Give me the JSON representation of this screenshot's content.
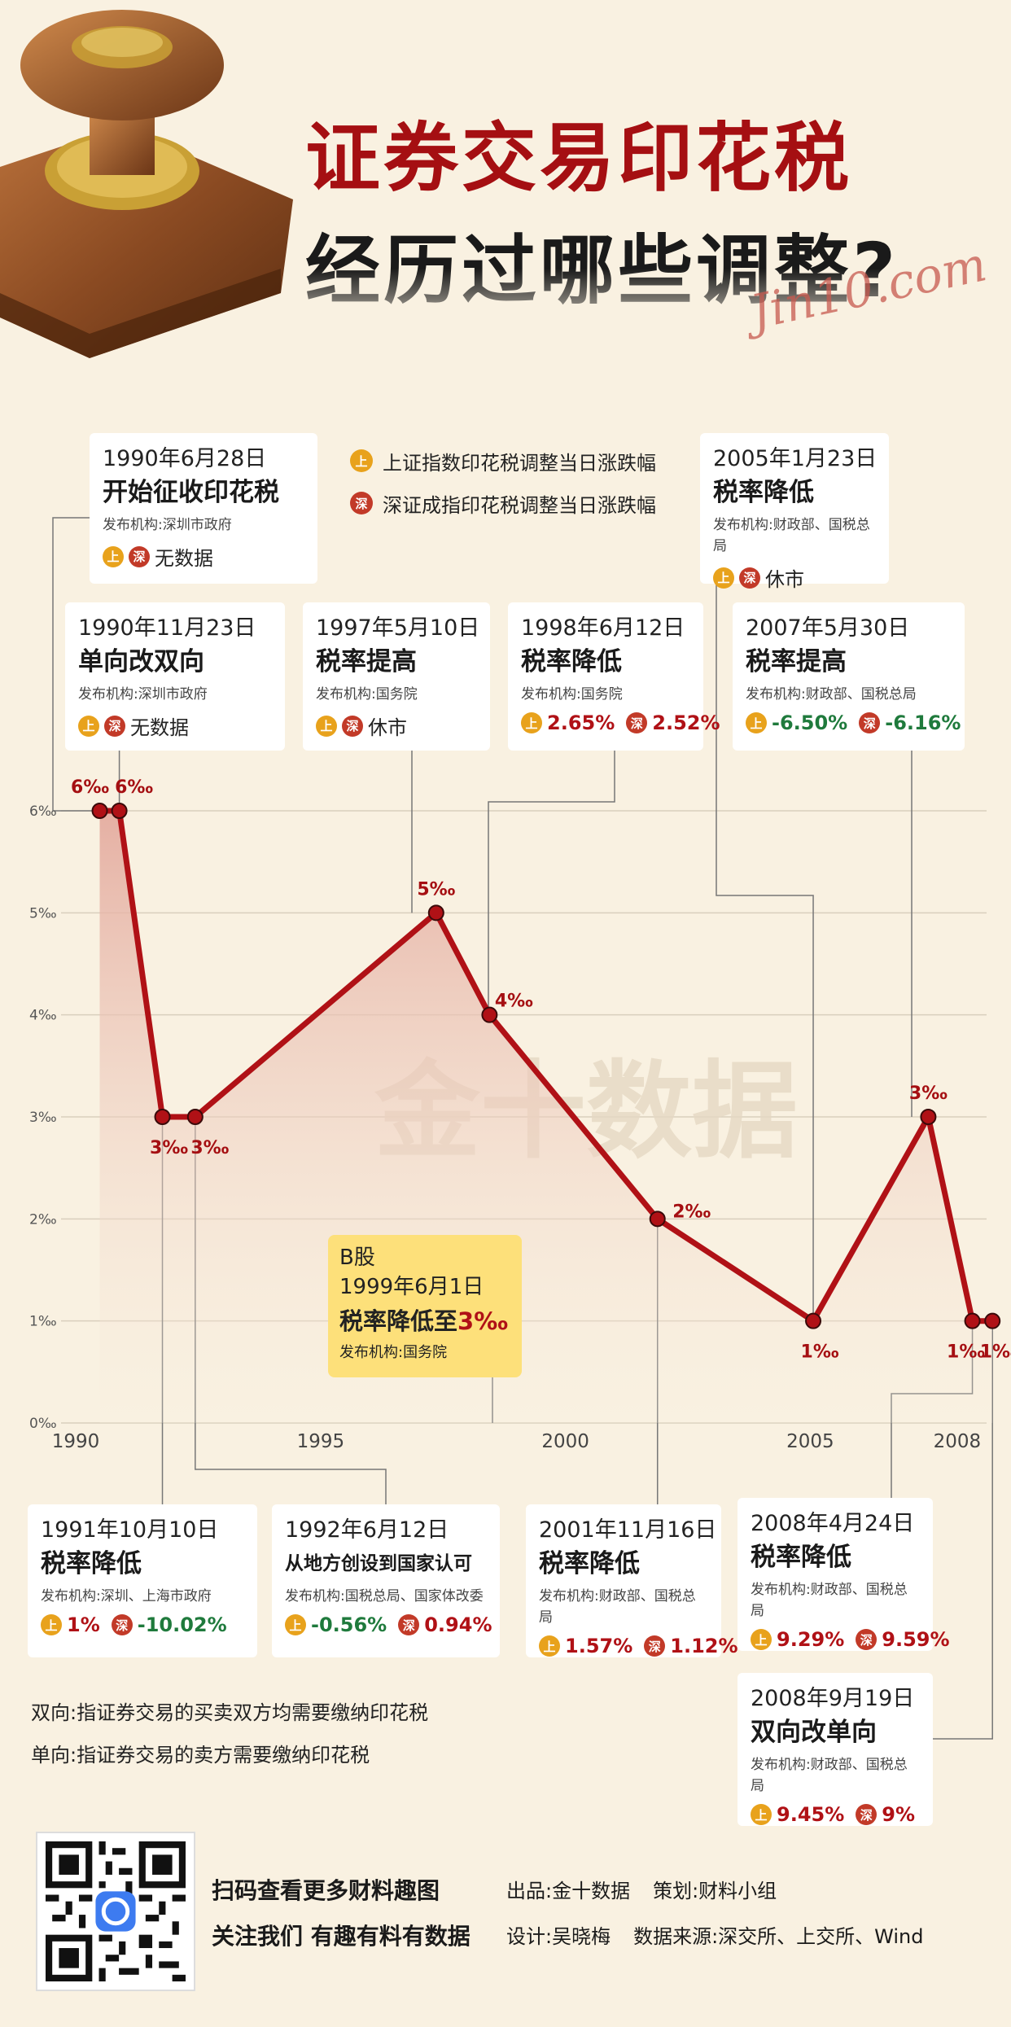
{
  "title": {
    "line1": "证券交易印花税",
    "line2": "经历过哪些调整?",
    "signature": "Jin10.com"
  },
  "legend": {
    "sh_badge": "上",
    "sz_badge": "深",
    "sh_label": "上证指数印花税调整当日涨跌幅",
    "sz_label": "深证成指印花税调整当日涨跌幅"
  },
  "cards": [
    {
      "date": "1990年6月28日",
      "event": "开始征收印花税",
      "issuer": "发布机构:深圳市政府",
      "sh": "",
      "sz": "",
      "text": "无数据"
    },
    {
      "date": "1990年11月23日",
      "event": "单向改双向",
      "issuer": "发布机构:深圳市政府",
      "sh": "",
      "sz": "",
      "text": "无数据"
    },
    {
      "date": "1997年5月10日",
      "event": "税率提高",
      "issuer": "发布机构:国务院",
      "sh": "",
      "sz": "",
      "text": "休市"
    },
    {
      "date": "1998年6月12日",
      "event": "税率降低",
      "issuer": "发布机构:国务院",
      "sh": "2.65%",
      "sz": "2.52%",
      "text": ""
    },
    {
      "date": "2005年1月23日",
      "event": "税率降低",
      "issuer": "发布机构:财政部、国税总局",
      "sh": "",
      "sz": "",
      "text": "休市"
    },
    {
      "date": "2007年5月30日",
      "event": "税率提高",
      "issuer": "发布机构:财政部、国税总局",
      "sh": "-6.50%",
      "sz": "-6.16%",
      "text": ""
    },
    {
      "date": "1991年10月10日",
      "event": "税率降低",
      "issuer": "发布机构:深圳、上海市政府",
      "sh": "1%",
      "sz": "-10.02%",
      "text": ""
    },
    {
      "date": "1992年6月12日",
      "event": "从地方创设到国家认可",
      "issuer": "发布机构:国税总局、国家体改委",
      "sh": "-0.56%",
      "sz": "0.94%",
      "text": ""
    },
    {
      "date": "2001年11月16日",
      "event": "税率降低",
      "issuer": "发布机构:财政部、国税总局",
      "sh": "1.57%",
      "sz": "1.12%",
      "text": ""
    },
    {
      "date": "2008年4月24日",
      "event": "税率降低",
      "issuer": "发布机构:财政部、国税总局",
      "sh": "9.29%",
      "sz": "9.59%",
      "text": ""
    },
    {
      "date": "2008年9月19日",
      "event": "双向改单向",
      "issuer": "发布机构:财政部、国税总局",
      "sh": "9.45%",
      "sz": "9%",
      "text": ""
    }
  ],
  "bshare": {
    "label": "B股",
    "date": "1999年6月1日",
    "event_prefix": "税率降低至",
    "event_value": "3‰",
    "issuer": "发布机构:国务院"
  },
  "colors": {
    "line": "#b01116",
    "fill_top": "#e3a89c",
    "sh_badge": "#e8a21c",
    "sz_badge": "#c23a28",
    "up": "#b01116",
    "down": "#1f7a3c"
  },
  "chart_data": {
    "type": "line",
    "y_unit": "‰",
    "ylim": [
      0,
      6
    ],
    "yticks": [
      "0‰",
      "1‰",
      "2‰",
      "3‰",
      "4‰",
      "5‰",
      "6‰"
    ],
    "xticks": [
      "1990",
      "1995",
      "2000",
      "2005",
      "2008"
    ],
    "xlim": [
      1989.7,
      2008.6
    ],
    "grid": true,
    "x": [
      1990.49,
      1990.89,
      1991.77,
      1992.44,
      1997.36,
      1998.45,
      2001.88,
      2005.06,
      2007.41,
      2008.31,
      2008.72
    ],
    "values": [
      6,
      6,
      3,
      3,
      5,
      4,
      2,
      1,
      3,
      1,
      1
    ],
    "point_labels": [
      "6‰",
      "6‰",
      "3‰",
      "3‰",
      "5‰",
      "4‰",
      "2‰",
      "1‰",
      "3‰",
      "1‰",
      "1‰"
    ],
    "watermark": "金十数据"
  },
  "notes": [
    "双向:指证券交易的买卖双方均需要缴纳印花税",
    "单向:指证券交易的卖方需要缴纳印花税"
  ],
  "footer": {
    "scan": "扫码查看更多财料趣图",
    "follow": "关注我们 有趣有料有数据",
    "producer": "出品:金十数据",
    "planner": "策划:财料小组",
    "designer": "设计:吴晓梅",
    "source": "数据来源:深交所、上交所、Wind"
  }
}
